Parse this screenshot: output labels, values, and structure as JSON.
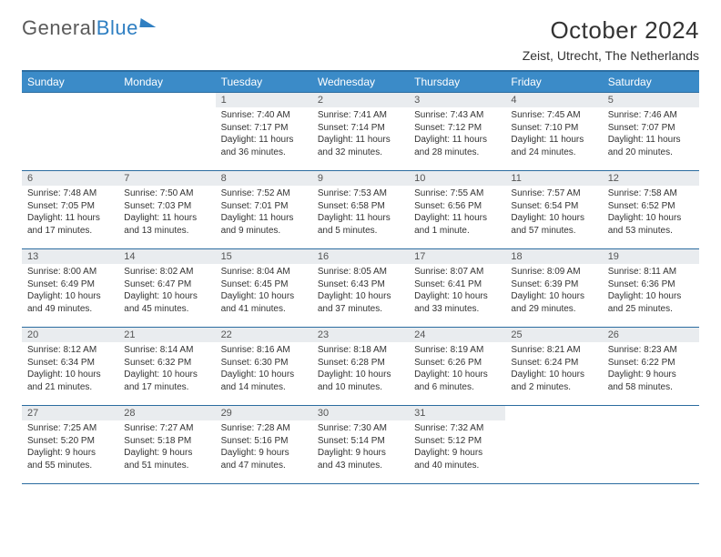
{
  "logo": {
    "text1": "General",
    "text2": "Blue"
  },
  "title": "October 2024",
  "location": "Zeist, Utrecht, The Netherlands",
  "colors": {
    "header_bg": "#3b8bc8",
    "header_border": "#2b6ca0",
    "daynum_bg": "#e9ecef",
    "text": "#333333",
    "logo_gray": "#5a5a5a",
    "logo_blue": "#2f7fc2"
  },
  "day_headers": [
    "Sunday",
    "Monday",
    "Tuesday",
    "Wednesday",
    "Thursday",
    "Friday",
    "Saturday"
  ],
  "weeks": [
    [
      {
        "blank": true
      },
      {
        "blank": true
      },
      {
        "n": "1",
        "sr": "7:40 AM",
        "ss": "7:17 PM",
        "dl": "11 hours and 36 minutes."
      },
      {
        "n": "2",
        "sr": "7:41 AM",
        "ss": "7:14 PM",
        "dl": "11 hours and 32 minutes."
      },
      {
        "n": "3",
        "sr": "7:43 AM",
        "ss": "7:12 PM",
        "dl": "11 hours and 28 minutes."
      },
      {
        "n": "4",
        "sr": "7:45 AM",
        "ss": "7:10 PM",
        "dl": "11 hours and 24 minutes."
      },
      {
        "n": "5",
        "sr": "7:46 AM",
        "ss": "7:07 PM",
        "dl": "11 hours and 20 minutes."
      }
    ],
    [
      {
        "n": "6",
        "sr": "7:48 AM",
        "ss": "7:05 PM",
        "dl": "11 hours and 17 minutes."
      },
      {
        "n": "7",
        "sr": "7:50 AM",
        "ss": "7:03 PM",
        "dl": "11 hours and 13 minutes."
      },
      {
        "n": "8",
        "sr": "7:52 AM",
        "ss": "7:01 PM",
        "dl": "11 hours and 9 minutes."
      },
      {
        "n": "9",
        "sr": "7:53 AM",
        "ss": "6:58 PM",
        "dl": "11 hours and 5 minutes."
      },
      {
        "n": "10",
        "sr": "7:55 AM",
        "ss": "6:56 PM",
        "dl": "11 hours and 1 minute."
      },
      {
        "n": "11",
        "sr": "7:57 AM",
        "ss": "6:54 PM",
        "dl": "10 hours and 57 minutes."
      },
      {
        "n": "12",
        "sr": "7:58 AM",
        "ss": "6:52 PM",
        "dl": "10 hours and 53 minutes."
      }
    ],
    [
      {
        "n": "13",
        "sr": "8:00 AM",
        "ss": "6:49 PM",
        "dl": "10 hours and 49 minutes."
      },
      {
        "n": "14",
        "sr": "8:02 AM",
        "ss": "6:47 PM",
        "dl": "10 hours and 45 minutes."
      },
      {
        "n": "15",
        "sr": "8:04 AM",
        "ss": "6:45 PM",
        "dl": "10 hours and 41 minutes."
      },
      {
        "n": "16",
        "sr": "8:05 AM",
        "ss": "6:43 PM",
        "dl": "10 hours and 37 minutes."
      },
      {
        "n": "17",
        "sr": "8:07 AM",
        "ss": "6:41 PM",
        "dl": "10 hours and 33 minutes."
      },
      {
        "n": "18",
        "sr": "8:09 AM",
        "ss": "6:39 PM",
        "dl": "10 hours and 29 minutes."
      },
      {
        "n": "19",
        "sr": "8:11 AM",
        "ss": "6:36 PM",
        "dl": "10 hours and 25 minutes."
      }
    ],
    [
      {
        "n": "20",
        "sr": "8:12 AM",
        "ss": "6:34 PM",
        "dl": "10 hours and 21 minutes."
      },
      {
        "n": "21",
        "sr": "8:14 AM",
        "ss": "6:32 PM",
        "dl": "10 hours and 17 minutes."
      },
      {
        "n": "22",
        "sr": "8:16 AM",
        "ss": "6:30 PM",
        "dl": "10 hours and 14 minutes."
      },
      {
        "n": "23",
        "sr": "8:18 AM",
        "ss": "6:28 PM",
        "dl": "10 hours and 10 minutes."
      },
      {
        "n": "24",
        "sr": "8:19 AM",
        "ss": "6:26 PM",
        "dl": "10 hours and 6 minutes."
      },
      {
        "n": "25",
        "sr": "8:21 AM",
        "ss": "6:24 PM",
        "dl": "10 hours and 2 minutes."
      },
      {
        "n": "26",
        "sr": "8:23 AM",
        "ss": "6:22 PM",
        "dl": "9 hours and 58 minutes."
      }
    ],
    [
      {
        "n": "27",
        "sr": "7:25 AM",
        "ss": "5:20 PM",
        "dl": "9 hours and 55 minutes."
      },
      {
        "n": "28",
        "sr": "7:27 AM",
        "ss": "5:18 PM",
        "dl": "9 hours and 51 minutes."
      },
      {
        "n": "29",
        "sr": "7:28 AM",
        "ss": "5:16 PM",
        "dl": "9 hours and 47 minutes."
      },
      {
        "n": "30",
        "sr": "7:30 AM",
        "ss": "5:14 PM",
        "dl": "9 hours and 43 minutes."
      },
      {
        "n": "31",
        "sr": "7:32 AM",
        "ss": "5:12 PM",
        "dl": "9 hours and 40 minutes."
      },
      {
        "blank": true
      },
      {
        "blank": true
      }
    ]
  ],
  "labels": {
    "sunrise": "Sunrise:",
    "sunset": "Sunset:",
    "daylight": "Daylight:"
  }
}
